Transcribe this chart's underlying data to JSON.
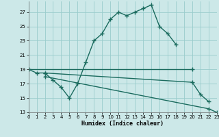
{
  "xlabel": "Humidex (Indice chaleur)",
  "bg_color": "#cce8e8",
  "grid_color": "#99cccc",
  "line_color": "#1a6b5e",
  "line1_x": [
    0,
    1,
    2,
    3,
    4,
    5,
    6,
    7,
    8,
    9,
    10,
    11,
    12,
    13,
    14,
    15,
    16,
    17,
    18
  ],
  "line1_y": [
    19,
    18.5,
    18.5,
    17.5,
    16.5,
    15,
    17,
    20,
    23,
    24,
    26,
    27,
    26.5,
    27,
    27.5,
    28,
    25,
    24,
    22.5
  ],
  "line2_x": [
    0,
    20
  ],
  "line2_y": [
    19,
    19
  ],
  "line3_x": [
    2,
    20,
    21,
    22
  ],
  "line3_y": [
    18.5,
    17.2,
    15.5,
    14.5
  ],
  "line4_x": [
    2,
    22,
    23
  ],
  "line4_y": [
    18,
    13.5,
    13
  ],
  "xlim": [
    0,
    23
  ],
  "ylim": [
    13,
    28.5
  ],
  "yticks": [
    13,
    15,
    17,
    19,
    21,
    23,
    25,
    27
  ],
  "xticks": [
    0,
    1,
    2,
    3,
    4,
    5,
    6,
    7,
    8,
    9,
    10,
    11,
    12,
    13,
    14,
    15,
    16,
    17,
    18,
    19,
    20,
    21,
    22,
    23
  ]
}
